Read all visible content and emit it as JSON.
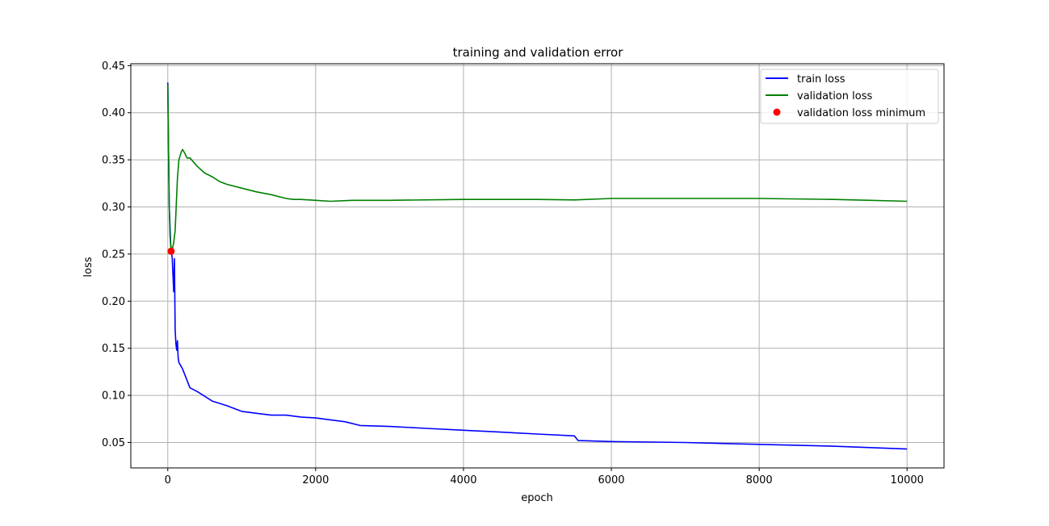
{
  "chart_data": {
    "type": "line",
    "title": "training and validation error",
    "xlabel": "epoch",
    "ylabel": "loss",
    "xlim": [
      -500,
      10500
    ],
    "ylim": [
      0.023,
      0.452
    ],
    "xticks": [
      0,
      2000,
      4000,
      6000,
      8000,
      10000
    ],
    "yticks": [
      0.05,
      0.1,
      0.15,
      0.2,
      0.25,
      0.3,
      0.35,
      0.4,
      0.45
    ],
    "xtick_labels": [
      "0",
      "2000",
      "4000",
      "6000",
      "8000",
      "10000"
    ],
    "ytick_labels": [
      "0.05",
      "0.10",
      "0.15",
      "0.20",
      "0.25",
      "0.30",
      "0.35",
      "0.40",
      "0.45"
    ],
    "grid": true,
    "legend_position": "top-right",
    "series": [
      {
        "name": "train loss",
        "color": "#0000ff",
        "style": "line",
        "x": [
          0,
          10,
          20,
          40,
          60,
          80,
          90,
          100,
          110,
          120,
          130,
          140,
          150,
          200,
          250,
          300,
          400,
          500,
          600,
          800,
          1000,
          1200,
          1400,
          1600,
          1800,
          2000,
          2200,
          2400,
          2600,
          3000,
          3500,
          4000,
          4500,
          5000,
          5500,
          5550,
          6000,
          7000,
          8000,
          9000,
          10000
        ],
        "y": [
          0.432,
          0.36,
          0.3,
          0.26,
          0.245,
          0.21,
          0.245,
          0.17,
          0.155,
          0.148,
          0.158,
          0.14,
          0.135,
          0.128,
          0.118,
          0.108,
          0.104,
          0.099,
          0.094,
          0.089,
          0.083,
          0.081,
          0.079,
          0.079,
          0.077,
          0.076,
          0.074,
          0.072,
          0.068,
          0.067,
          0.065,
          0.063,
          0.061,
          0.059,
          0.057,
          0.052,
          0.051,
          0.05,
          0.048,
          0.046,
          0.043
        ]
      },
      {
        "name": "validation loss",
        "color": "#008000",
        "style": "line",
        "x": [
          0,
          10,
          20,
          30,
          40,
          60,
          80,
          100,
          130,
          150,
          180,
          200,
          230,
          260,
          300,
          400,
          500,
          600,
          700,
          800,
          1000,
          1200,
          1400,
          1600,
          1700,
          1800,
          2000,
          2200,
          2500,
          3000,
          4000,
          5000,
          5500,
          6000,
          7000,
          8000,
          9000,
          9500,
          10000
        ],
        "y": [
          0.43,
          0.36,
          0.3,
          0.27,
          0.258,
          0.255,
          0.262,
          0.275,
          0.33,
          0.35,
          0.358,
          0.361,
          0.357,
          0.352,
          0.352,
          0.343,
          0.336,
          0.332,
          0.327,
          0.324,
          0.32,
          0.316,
          0.313,
          0.309,
          0.308,
          0.308,
          0.307,
          0.306,
          0.307,
          0.307,
          0.308,
          0.308,
          0.3075,
          0.309,
          0.309,
          0.309,
          0.308,
          0.307,
          0.306
        ]
      },
      {
        "name": "validation loss minimum",
        "color": "#ff0000",
        "style": "marker",
        "x": [
          45
        ],
        "y": [
          0.253
        ]
      }
    ]
  }
}
